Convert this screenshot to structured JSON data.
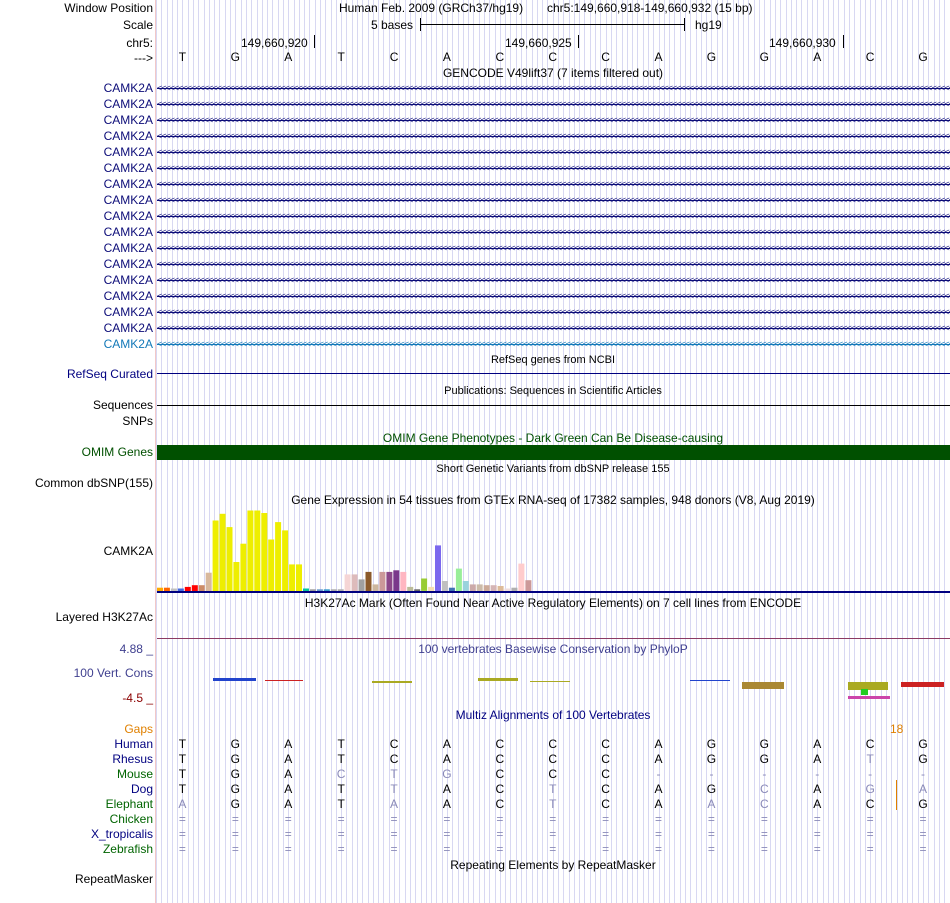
{
  "header": {
    "window_position_label": "Window Position",
    "assembly": "Human Feb. 2009 (GRCh37/hg19)",
    "position": "chr5:149,660,918-149,660,932 (15 bp)",
    "scale_label": "Scale",
    "scale_text": "5 bases",
    "db": "hg19",
    "chrom_label": "chr5:",
    "coords": [
      "149,660,920",
      "149,660,925",
      "149,660,930"
    ],
    "strand_label": "--->",
    "bases": [
      "T",
      "G",
      "A",
      "T",
      "C",
      "A",
      "C",
      "C",
      "C",
      "A",
      "G",
      "G",
      "A",
      "C",
      "G"
    ]
  },
  "gencode": {
    "title": "GENCODE V49lift37 (7 items filtered out)",
    "genes": [
      "CAMK2A",
      "CAMK2A",
      "CAMK2A",
      "CAMK2A",
      "CAMK2A",
      "CAMK2A",
      "CAMK2A",
      "CAMK2A",
      "CAMK2A",
      "CAMK2A",
      "CAMK2A",
      "CAMK2A",
      "CAMK2A",
      "CAMK2A",
      "CAMK2A",
      "CAMK2A",
      "CAMK2A"
    ]
  },
  "refseq": {
    "title": "RefSeq genes from NCBI",
    "label": "RefSeq Curated"
  },
  "pubs": {
    "title": "Publications: Sequences in Scientific Articles",
    "label": "Sequences"
  },
  "snps": {
    "label": "SNPs"
  },
  "omim": {
    "title": "OMIM Gene Phenotypes - Dark Green Can Be Disease-causing",
    "label": "OMIM Genes"
  },
  "dbsnp": {
    "title": "Short Genetic Variants from dbSNP release 155",
    "label": "Common dbSNP(155)"
  },
  "gtex": {
    "title": "Gene Expression in 54 tissues from GTEx RNA-seq of 17382 samples, 948 donors (V8, Aug 2019)",
    "label": "CAMK2A"
  },
  "h3k27ac": {
    "title": "H3K27Ac Mark (Often Found Near Active Regulatory Elements) on 7 cell lines from ENCODE",
    "label": "Layered H3K27Ac"
  },
  "cons": {
    "title": "100 vertebrates Basewise Conservation by PhyloP",
    "label": "100 Vert. Cons",
    "max": "4.88 _",
    "min": "-4.5 _"
  },
  "multiz": {
    "title": "Multiz Alignments of 100 Vertebrates",
    "gaps_label": "Gaps",
    "gaps_value": "18",
    "species": [
      {
        "name": "Human",
        "color": "#000080",
        "seq": [
          "T",
          "G",
          "A",
          "T",
          "C",
          "A",
          "C",
          "C",
          "C",
          "A",
          "G",
          "G",
          "A",
          "C",
          "G"
        ]
      },
      {
        "name": "Rhesus",
        "color": "#000080",
        "seq": [
          "T",
          "G",
          "A",
          "T",
          "C",
          "A",
          "C",
          "C",
          "C",
          "A",
          "G",
          "G",
          "A",
          "T",
          "G"
        ]
      },
      {
        "name": "Mouse",
        "color": "#006400",
        "seq": [
          "T",
          "G",
          "A",
          "C",
          "T",
          "G",
          "C",
          "C",
          "C",
          "-",
          "-",
          "-",
          "-",
          "-",
          "-"
        ]
      },
      {
        "name": "Dog",
        "color": "#000080",
        "seq": [
          "T",
          "G",
          "A",
          "T",
          "T",
          "A",
          "C",
          "T",
          "C",
          "A",
          "G",
          "C",
          "A",
          "G",
          "A"
        ]
      },
      {
        "name": "Elephant",
        "color": "#006400",
        "seq": [
          "A",
          "G",
          "A",
          "T",
          "A",
          "A",
          "C",
          "T",
          "C",
          "A",
          "A",
          "C",
          "A",
          "C",
          "G"
        ]
      },
      {
        "name": "Chicken",
        "color": "#006400",
        "seq": [
          "=",
          "=",
          "=",
          "=",
          "=",
          "=",
          "=",
          "=",
          "=",
          "=",
          "=",
          "=",
          "=",
          "=",
          "="
        ]
      },
      {
        "name": "X_tropicalis",
        "color": "#000080",
        "seq": [
          "=",
          "=",
          "=",
          "=",
          "=",
          "=",
          "=",
          "=",
          "=",
          "=",
          "=",
          "=",
          "=",
          "=",
          "="
        ]
      },
      {
        "name": "Zebrafish",
        "color": "#006400",
        "seq": [
          "=",
          "=",
          "=",
          "=",
          "=",
          "=",
          "=",
          "=",
          "=",
          "=",
          "=",
          "=",
          "=",
          "=",
          "="
        ]
      }
    ]
  },
  "repeatmasker": {
    "title": "Repeating Elements by RepeatMasker",
    "label": "RepeatMasker"
  },
  "chart_data": {
    "type": "bar",
    "title": "Gene Expression in 54 tissues from GTEx RNA-seq of 17382 samples, 948 donors (V8, Aug 2019)",
    "ylabel": "",
    "xlabel": "",
    "ylim": [
      0,
      100
    ],
    "values": [
      4,
      4,
      3,
      3,
      5,
      7,
      7,
      22,
      85,
      93,
      77,
      35,
      57,
      97,
      97,
      94,
      62,
      83,
      73,
      32,
      32,
      3,
      2,
      2,
      2,
      2,
      2,
      20,
      20,
      14,
      23,
      8,
      23,
      23,
      25,
      23,
      5,
      2,
      15,
      5,
      55,
      12,
      4,
      27,
      12,
      8,
      8,
      7,
      7,
      6,
      3,
      4,
      33,
      13
    ],
    "colors": [
      "#FFAA00",
      "#FF6600",
      "#C0C0C0",
      "#4169E1",
      "#FF0000",
      "#FF0000",
      "#CC8B66",
      "#D8B89C",
      "#EEEE00",
      "#EEEE00",
      "#EEEE00",
      "#EEEE00",
      "#EEEE00",
      "#EEEE00",
      "#EEEE00",
      "#EEEE00",
      "#EEEE00",
      "#EEEE00",
      "#EEEE00",
      "#EEEE00",
      "#EEEE00",
      "#00C8A0",
      "#9C9C9C",
      "#6699CC",
      "#3399CC",
      "#AAAAAA",
      "#AAAAAA",
      "#F5D5D5",
      "#DDBBBB",
      "#A0A0A0",
      "#8B5A2B",
      "#CDB79E",
      "#CC9999",
      "#8B4789",
      "#7A378B",
      "#FFB6C1",
      "#BBBB99",
      "#666666",
      "#99CC33",
      "#F5DEB3",
      "#7B68EE",
      "#C0C0C0",
      "#3F72B5",
      "#99EE99",
      "#99D3DD",
      "#CCAAAA",
      "#CCBBAA",
      "#CCAA99",
      "#D5B5B5",
      "#DDBB99",
      "#EEDDDD",
      "#B0B0B0",
      "#FFCCCC",
      "#CC9999"
    ]
  },
  "colors": {
    "navy": "#000080",
    "omim": "#005000",
    "gaps": "#E08000",
    "cons": "#3F3F8F"
  }
}
